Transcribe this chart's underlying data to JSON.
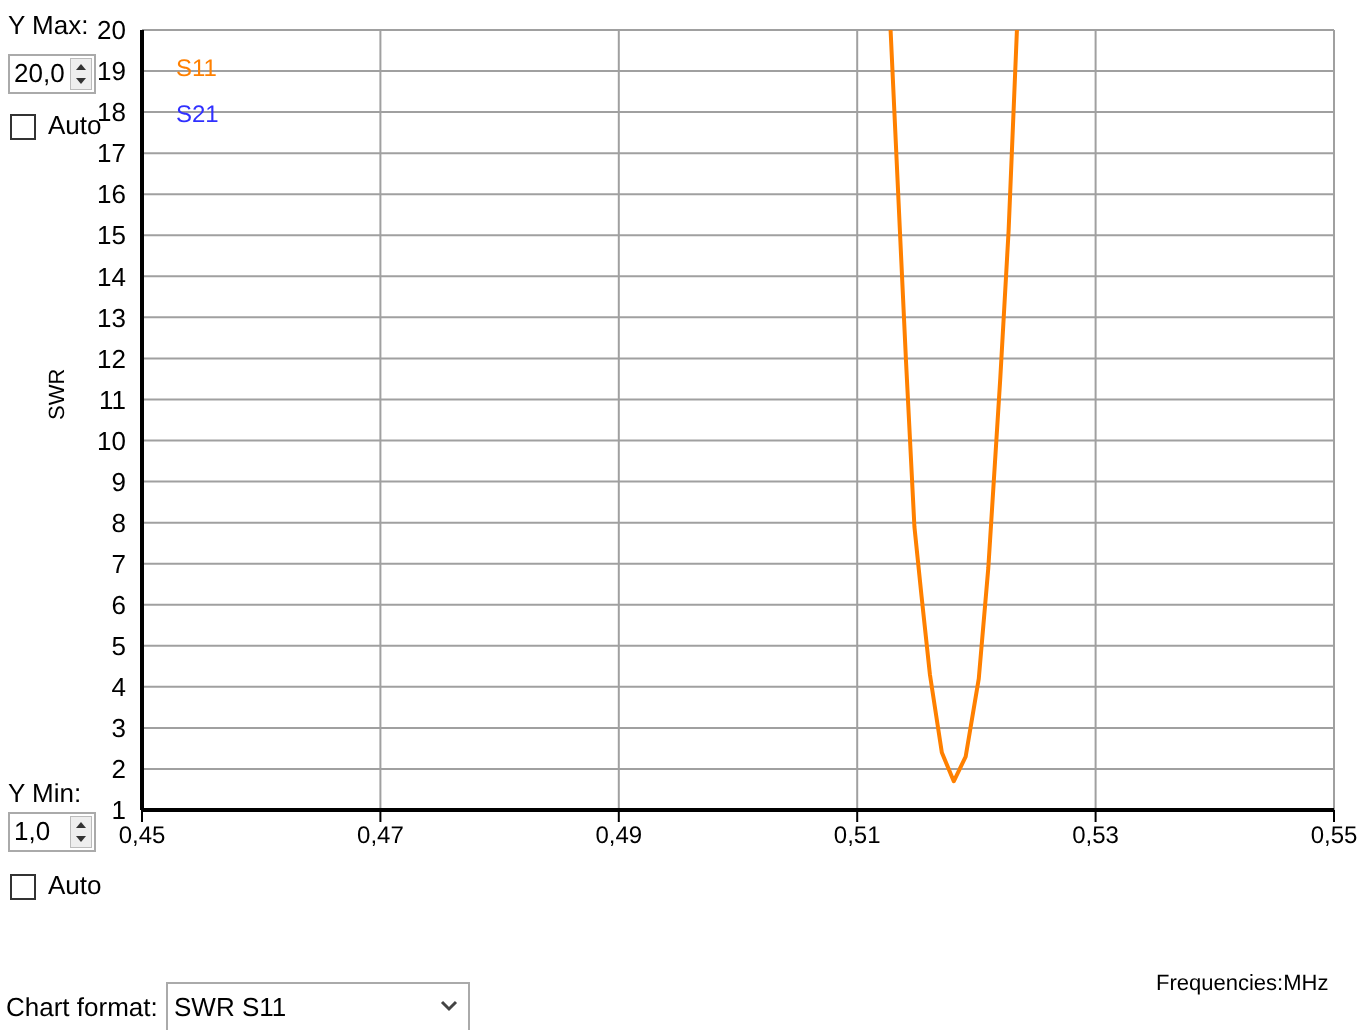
{
  "chart_data": {
    "type": "line",
    "ylabel": "SWR",
    "series": [
      {
        "name": "S11",
        "color": "#ff8000",
        "x": [
          0.5128,
          0.5136,
          0.5141,
          0.5148,
          0.5154,
          0.5161,
          0.5171,
          0.5181,
          0.5191,
          0.5202,
          0.521,
          0.522,
          0.5227,
          0.5234
        ],
        "values": [
          20,
          15.0,
          11.9,
          7.9,
          6.2,
          4.3,
          2.4,
          1.7,
          2.3,
          4.2,
          6.9,
          11.5,
          15.1,
          20
        ]
      },
      {
        "name": "S21",
        "color": "#3030ff"
      }
    ],
    "xlim": [
      0.45,
      0.55
    ],
    "xticks": [
      {
        "value": 0.45,
        "label": "0,45"
      },
      {
        "value": 0.47,
        "label": "0,47"
      },
      {
        "value": 0.49,
        "label": "0,49"
      },
      {
        "value": 0.51,
        "label": "0,51"
      },
      {
        "value": 0.53,
        "label": "0,53"
      },
      {
        "value": 0.55,
        "label": "0,55"
      }
    ],
    "ylim": [
      1,
      20
    ],
    "yticks": [
      1,
      2,
      3,
      4,
      5,
      6,
      7,
      8,
      9,
      10,
      11,
      12,
      13,
      14,
      15,
      16,
      17,
      18,
      19,
      20
    ],
    "grid": true,
    "legend": "top left",
    "marker": "none",
    "line_style": "solid",
    "annotations": [
      "Y Max:",
      "20,0",
      "Auto",
      "Y Min:",
      "1,0",
      "Auto",
      "Chart format:",
      "SWR S11",
      "Frequencies:MHz"
    ]
  }
}
